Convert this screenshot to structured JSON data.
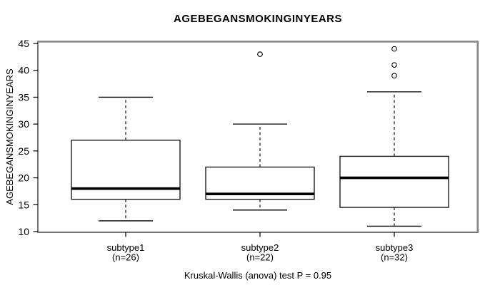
{
  "chart_data": {
    "type": "boxplot",
    "title": "AGEBEGANSMOKINGINYEARS",
    "ylabel": "AGEBEGANSMOKINGINYEARS",
    "footer_annotation": "Kruskal-Wallis (anova) test P = 0.95",
    "ylim": [
      10,
      45
    ],
    "yticks": [
      10,
      15,
      20,
      25,
      30,
      35,
      40,
      45
    ],
    "grid": false,
    "legend": null,
    "groups": [
      {
        "label": "subtype1",
        "sublabel": "(n=26)",
        "n": 26,
        "whisker_low": 12,
        "q1": 16,
        "median": 18,
        "q3": 27,
        "whisker_high": 35,
        "outliers": []
      },
      {
        "label": "subtype2",
        "sublabel": "(n=22)",
        "n": 22,
        "whisker_low": 14,
        "q1": 16,
        "median": 17,
        "q3": 22,
        "whisker_high": 30,
        "outliers": [
          43
        ]
      },
      {
        "label": "subtype3",
        "sublabel": "(n=32)",
        "n": 32,
        "whisker_low": 11,
        "q1": 14.5,
        "median": 20,
        "q3": 24,
        "whisker_high": 36,
        "outliers": [
          39,
          41,
          44
        ]
      }
    ],
    "colors": {
      "line": "#000000",
      "frame": "#3a3a3a",
      "frame_accent": "#8d8d8d",
      "background": "#ffffff"
    }
  }
}
